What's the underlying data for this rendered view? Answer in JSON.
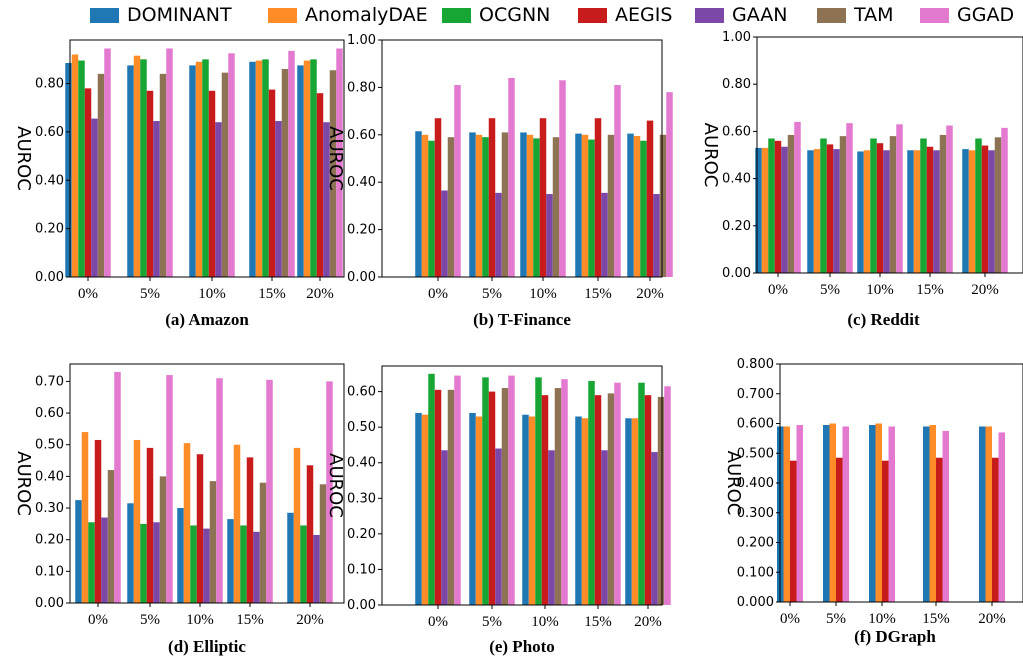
{
  "legend": [
    {
      "name": "DOMINANT",
      "color": "#1f77b4"
    },
    {
      "name": "AnomalyDAE",
      "color": "#ff8c26"
    },
    {
      "name": "OCGNN",
      "color": "#17a534"
    },
    {
      "name": "AEGIS",
      "color": "#c81b1b"
    },
    {
      "name": "GAAN",
      "color": "#7b48a8"
    },
    {
      "name": "TAM",
      "color": "#8e7254"
    },
    {
      "name": "GGAD",
      "color": "#e37ad0"
    }
  ],
  "chart_data": [
    {
      "type": "bar",
      "caption": "(a)  Amazon",
      "ylabel": "AUROC",
      "categories": [
        "0%",
        "5%",
        "10%",
        "15%",
        "20%"
      ],
      "ylim": [
        0,
        0.98
      ],
      "yticks": [
        0.0,
        0.2,
        0.4,
        0.6,
        0.8
      ],
      "ytick_labels": [
        "0.00",
        "0.20",
        "0.40",
        "0.60",
        "0.80"
      ],
      "series": [
        {
          "name": "DOMINANT",
          "values": [
            0.885,
            0.875,
            0.875,
            0.89,
            0.875
          ]
        },
        {
          "name": "AnomalyDAE",
          "values": [
            0.92,
            0.915,
            0.89,
            0.895,
            0.895
          ]
        },
        {
          "name": "OCGNN",
          "values": [
            0.895,
            0.9,
            0.9,
            0.9,
            0.9
          ]
        },
        {
          "name": "AEGIS",
          "values": [
            0.78,
            0.77,
            0.77,
            0.775,
            0.76
          ]
        },
        {
          "name": "GAAN",
          "values": [
            0.655,
            0.645,
            0.64,
            0.645,
            0.64
          ]
        },
        {
          "name": "TAM",
          "values": [
            0.84,
            0.84,
            0.845,
            0.86,
            0.855
          ]
        },
        {
          "name": "GGAD",
          "values": [
            0.945,
            0.945,
            0.925,
            0.935,
            0.945
          ]
        }
      ]
    },
    {
      "type": "bar",
      "caption": "(b) T-Finance",
      "ylabel": "AUROC",
      "categories": [
        "0%",
        "5%",
        "10%",
        "15%",
        "20%"
      ],
      "ylim": [
        0,
        1.0
      ],
      "yticks": [
        0.0,
        0.2,
        0.4,
        0.6,
        0.8,
        1.0
      ],
      "ytick_labels": [
        "0.00",
        "0.20",
        "0.40",
        "0.60",
        "0.80",
        "1.00"
      ],
      "series": [
        {
          "name": "DOMINANT",
          "values": [
            0.615,
            0.61,
            0.61,
            0.605,
            0.605
          ]
        },
        {
          "name": "AnomalyDAE",
          "values": [
            0.6,
            0.6,
            0.6,
            0.6,
            0.595
          ]
        },
        {
          "name": "OCGNN",
          "values": [
            0.575,
            0.59,
            0.585,
            0.58,
            0.575
          ]
        },
        {
          "name": "AEGIS",
          "values": [
            0.67,
            0.67,
            0.67,
            0.67,
            0.66
          ]
        },
        {
          "name": "GAAN",
          "values": [
            0.365,
            0.355,
            0.35,
            0.355,
            0.35
          ]
        },
        {
          "name": "TAM",
          "values": [
            0.59,
            0.61,
            0.59,
            0.6,
            0.6
          ]
        },
        {
          "name": "GGAD",
          "values": [
            0.81,
            0.84,
            0.83,
            0.81,
            0.78
          ]
        }
      ]
    },
    {
      "type": "bar",
      "caption": "(c) Reddit",
      "ylabel": "AUROC",
      "categories": [
        "0%",
        "5%",
        "10%",
        "15%",
        "20%"
      ],
      "ylim": [
        0,
        1.0
      ],
      "yticks": [
        0.0,
        0.2,
        0.4,
        0.6,
        0.8,
        1.0
      ],
      "ytick_labels": [
        "0.00",
        "0.20",
        "0.40",
        "0.60",
        "0.80",
        "1.00"
      ],
      "series": [
        {
          "name": "DOMINANT",
          "values": [
            0.53,
            0.52,
            0.515,
            0.52,
            0.525
          ]
        },
        {
          "name": "AnomalyDAE",
          "values": [
            0.53,
            0.525,
            0.52,
            0.52,
            0.52
          ]
        },
        {
          "name": "OCGNN",
          "values": [
            0.57,
            0.57,
            0.57,
            0.57,
            0.57
          ]
        },
        {
          "name": "AEGIS",
          "values": [
            0.56,
            0.545,
            0.55,
            0.535,
            0.54
          ]
        },
        {
          "name": "GAAN",
          "values": [
            0.535,
            0.525,
            0.52,
            0.52,
            0.52
          ]
        },
        {
          "name": "TAM",
          "values": [
            0.585,
            0.58,
            0.58,
            0.585,
            0.575
          ]
        },
        {
          "name": "GGAD",
          "values": [
            0.64,
            0.635,
            0.63,
            0.625,
            0.615
          ]
        }
      ]
    },
    {
      "type": "bar",
      "caption": "(d)  Elliptic",
      "ylabel": "AUROC",
      "categories": [
        "0%",
        "5%",
        "10%",
        "15%",
        "20%"
      ],
      "ylim": [
        0,
        0.755
      ],
      "yticks": [
        0.0,
        0.1,
        0.2,
        0.3,
        0.4,
        0.5,
        0.6,
        0.7
      ],
      "ytick_labels": [
        "0.00",
        "0.10",
        "0.20",
        "0.30",
        "0.40",
        "0.50",
        "0.60",
        "0.70"
      ],
      "series": [
        {
          "name": "DOMINANT",
          "values": [
            0.325,
            0.315,
            0.3,
            0.265,
            0.285
          ]
        },
        {
          "name": "AnomalyDAE",
          "values": [
            0.54,
            0.515,
            0.505,
            0.5,
            0.49
          ]
        },
        {
          "name": "OCGNN",
          "values": [
            0.255,
            0.25,
            0.245,
            0.245,
            0.245
          ]
        },
        {
          "name": "AEGIS",
          "values": [
            0.515,
            0.49,
            0.47,
            0.46,
            0.435
          ]
        },
        {
          "name": "GAAN",
          "values": [
            0.27,
            0.255,
            0.235,
            0.225,
            0.215
          ]
        },
        {
          "name": "TAM",
          "values": [
            0.42,
            0.4,
            0.385,
            0.38,
            0.375
          ]
        },
        {
          "name": "GGAD",
          "values": [
            0.73,
            0.72,
            0.71,
            0.705,
            0.7
          ]
        }
      ]
    },
    {
      "type": "bar",
      "caption": "(e) Photo",
      "ylabel": "AUROC",
      "categories": [
        "0%",
        "5%",
        "10%",
        "15%",
        "20%"
      ],
      "ylim": [
        0,
        0.672
      ],
      "yticks": [
        0.0,
        0.1,
        0.2,
        0.3,
        0.4,
        0.5,
        0.6
      ],
      "ytick_labels": [
        "0.00",
        "0.10",
        "0.20",
        "0.30",
        "0.40",
        "0.50",
        "0.60"
      ],
      "series": [
        {
          "name": "DOMINANT",
          "values": [
            0.54,
            0.54,
            0.535,
            0.53,
            0.525
          ]
        },
        {
          "name": "AnomalyDAE",
          "values": [
            0.535,
            0.53,
            0.53,
            0.525,
            0.525
          ]
        },
        {
          "name": "OCGNN",
          "values": [
            0.65,
            0.64,
            0.64,
            0.63,
            0.625
          ]
        },
        {
          "name": "AEGIS",
          "values": [
            0.605,
            0.6,
            0.59,
            0.59,
            0.59
          ]
        },
        {
          "name": "GAAN",
          "values": [
            0.435,
            0.44,
            0.435,
            0.435,
            0.43
          ]
        },
        {
          "name": "TAM",
          "values": [
            0.605,
            0.61,
            0.61,
            0.595,
            0.585
          ]
        },
        {
          "name": "GGAD",
          "values": [
            0.645,
            0.645,
            0.635,
            0.625,
            0.615
          ]
        }
      ]
    },
    {
      "type": "bar",
      "caption": "(f) DGraph",
      "ylabel": "AUROC",
      "categories": [
        "0%",
        "5%",
        "10%",
        "15%",
        "20%"
      ],
      "ylim": [
        0,
        0.8
      ],
      "yticks": [
        0.0,
        0.1,
        0.2,
        0.3,
        0.4,
        0.5,
        0.6,
        0.7,
        0.8
      ],
      "ytick_labels": [
        "0.000",
        "0.100",
        "0.200",
        "0.300",
        "0.400",
        "0.500",
        "0.600",
        "0.700",
        "0.800"
      ],
      "series": [
        {
          "name": "DOMINANT",
          "values": [
            0.59,
            0.595,
            0.595,
            0.59,
            0.59
          ]
        },
        {
          "name": "AnomalyDAE",
          "values": [
            0.59,
            0.6,
            0.6,
            0.595,
            0.59
          ]
        },
        {
          "name": "AEGIS",
          "values": [
            0.475,
            0.485,
            0.475,
            0.485,
            0.485
          ]
        },
        {
          "name": "GGAD",
          "values": [
            0.595,
            0.59,
            0.59,
            0.575,
            0.57
          ]
        }
      ]
    }
  ]
}
